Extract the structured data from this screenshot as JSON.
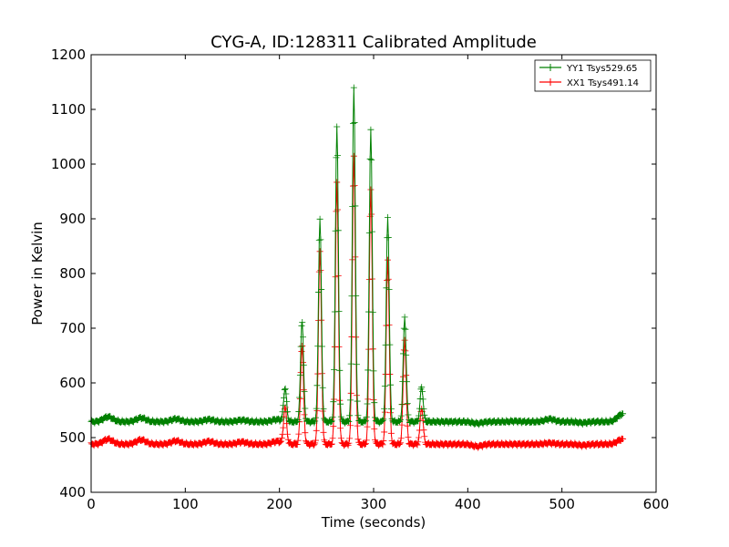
{
  "chart_data": {
    "type": "line",
    "title": "CYG-A, ID:128311 Calibrated Amplitude",
    "xlabel": "Time (seconds)",
    "ylabel": "Power in Kelvin",
    "xlim": [
      0,
      600
    ],
    "ylim": [
      400,
      1200
    ],
    "xticks": [
      0,
      100,
      200,
      300,
      400,
      500,
      600
    ],
    "yticks": [
      400,
      500,
      600,
      700,
      800,
      900,
      1000,
      1100,
      1200
    ],
    "grid": false,
    "legend_position": "top-right",
    "marker": "+",
    "time_range": [
      0,
      565
    ],
    "peaks": [
      {
        "x": 206,
        "yy1": 590,
        "xx1": 555
      },
      {
        "x": 224,
        "yy1": 715,
        "xx1": 668
      },
      {
        "x": 243,
        "yy1": 900,
        "xx1": 840
      },
      {
        "x": 261,
        "yy1": 1070,
        "xx1": 965
      },
      {
        "x": 279,
        "yy1": 1140,
        "xx1": 1015
      },
      {
        "x": 297,
        "yy1": 1065,
        "xx1": 955
      },
      {
        "x": 315,
        "yy1": 905,
        "xx1": 825
      },
      {
        "x": 333,
        "yy1": 720,
        "xx1": 680
      },
      {
        "x": 351,
        "yy1": 593,
        "xx1": 555
      }
    ],
    "series": [
      {
        "name": "YY1 Tsys529.65",
        "color": "#008000",
        "baseline": 529,
        "wave_bumps": [
          {
            "x": 18,
            "y": 538
          },
          {
            "x": 53,
            "y": 536
          },
          {
            "x": 90,
            "y": 534
          },
          {
            "x": 125,
            "y": 533
          },
          {
            "x": 160,
            "y": 532
          },
          {
            "x": 197,
            "y": 533
          },
          {
            "x": 410,
            "y": 526
          },
          {
            "x": 450,
            "y": 530
          },
          {
            "x": 487,
            "y": 534
          },
          {
            "x": 522,
            "y": 527
          },
          {
            "x": 564,
            "y": 543
          }
        ]
      },
      {
        "name": "XX1 Tsys491.14",
        "color": "#ff0000",
        "baseline": 488,
        "wave_bumps": [
          {
            "x": 18,
            "y": 497
          },
          {
            "x": 53,
            "y": 496
          },
          {
            "x": 90,
            "y": 494
          },
          {
            "x": 125,
            "y": 493
          },
          {
            "x": 160,
            "y": 492
          },
          {
            "x": 197,
            "y": 493
          },
          {
            "x": 410,
            "y": 484
          },
          {
            "x": 450,
            "y": 488
          },
          {
            "x": 487,
            "y": 490
          },
          {
            "x": 522,
            "y": 486
          },
          {
            "x": 564,
            "y": 497
          }
        ]
      }
    ]
  }
}
